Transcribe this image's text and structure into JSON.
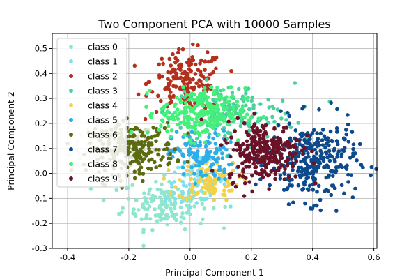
{
  "chart_data": {
    "type": "scatter",
    "title": "Two Component PCA with 10000 Samples",
    "xlabel": "Principal Component 1",
    "ylabel": "Principal Component 2",
    "xlim": [
      -0.45,
      0.61
    ],
    "ylim": [
      -0.3,
      0.56
    ],
    "xticks": [
      "-0.4",
      "-0.2",
      "0.0",
      "0.2",
      "0.4",
      "0.6"
    ],
    "xtick_values": [
      -0.4,
      -0.2,
      0.0,
      0.2,
      0.4,
      0.6
    ],
    "yticks": [
      "-0.3",
      "-0.2",
      "-0.1",
      "0.0",
      "0.1",
      "0.2",
      "0.3",
      "0.4",
      "0.5"
    ],
    "ytick_values": [
      -0.3,
      -0.2,
      -0.1,
      0.0,
      0.1,
      0.2,
      0.3,
      0.4,
      0.5
    ],
    "grid": true,
    "legend_position": "top-left",
    "series": [
      {
        "name": "class 0",
        "color": "#8fe6cf",
        "center": [
          -0.08,
          -0.12
        ],
        "spread": [
          0.07,
          0.05
        ],
        "count": 160
      },
      {
        "name": "class 1",
        "color": "#7fe0f0",
        "center": [
          0.02,
          -0.03
        ],
        "spread": [
          0.05,
          0.04
        ],
        "count": 70
      },
      {
        "name": "class 2",
        "color": "#b5301c",
        "center": [
          -0.01,
          0.37
        ],
        "spread": [
          0.06,
          0.06
        ],
        "count": 170
      },
      {
        "name": "class 3",
        "color": "#4dd0a0",
        "center": [
          0.14,
          0.24
        ],
        "spread": [
          0.1,
          0.06
        ],
        "count": 140
      },
      {
        "name": "class 4",
        "color": "#f2d24a",
        "center": [
          0.06,
          -0.03
        ],
        "spread": [
          0.05,
          0.04
        ],
        "count": 110
      },
      {
        "name": "class 5",
        "color": "#2eaee8",
        "center": [
          0.04,
          0.07
        ],
        "spread": [
          0.05,
          0.05
        ],
        "count": 130
      },
      {
        "name": "class 6",
        "color": "#5a6b12",
        "center": [
          -0.19,
          0.1
        ],
        "spread": [
          0.07,
          0.05
        ],
        "count": 240
      },
      {
        "name": "class 7",
        "color": "#0c4a8c",
        "center": [
          0.4,
          0.05
        ],
        "spread": [
          0.07,
          0.08
        ],
        "count": 300
      },
      {
        "name": "class 8",
        "color": "#44f07a",
        "center": [
          0.04,
          0.24
        ],
        "spread": [
          0.07,
          0.05
        ],
        "count": 260
      },
      {
        "name": "class 9",
        "color": "#6a1228",
        "center": [
          0.24,
          0.09
        ],
        "spread": [
          0.06,
          0.06
        ],
        "count": 280
      }
    ],
    "background_cloud": {
      "color": "#dcdcc8",
      "center": [
        -0.25,
        0.1
      ],
      "spread": [
        0.07,
        0.05
      ],
      "count": 120
    }
  }
}
